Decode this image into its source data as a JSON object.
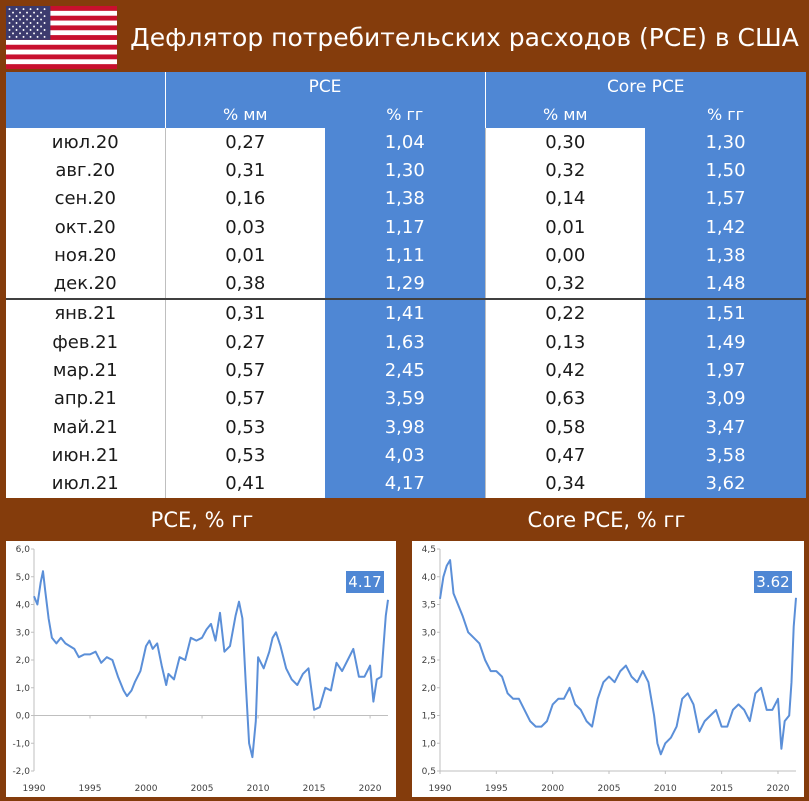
{
  "header": {
    "title": "Дефлятор потребительских расходов (PCE) в США",
    "flag_icon": "us-flag-icon"
  },
  "table": {
    "groups": [
      "PCE",
      "Core PCE"
    ],
    "subheaders": [
      "% мм",
      "% гг",
      "% мм",
      "% гг"
    ],
    "rows": [
      {
        "month": "июл.20",
        "pce_mm": "0,27",
        "pce_gg": "1,04",
        "core_mm": "0,30",
        "core_gg": "1,30"
      },
      {
        "month": "авг.20",
        "pce_mm": "0,31",
        "pce_gg": "1,30",
        "core_mm": "0,32",
        "core_gg": "1,50"
      },
      {
        "month": "сен.20",
        "pce_mm": "0,16",
        "pce_gg": "1,38",
        "core_mm": "0,14",
        "core_gg": "1,57"
      },
      {
        "month": "окт.20",
        "pce_mm": "0,03",
        "pce_gg": "1,17",
        "core_mm": "0,01",
        "core_gg": "1,42"
      },
      {
        "month": "ноя.20",
        "pce_mm": "0,01",
        "pce_gg": "1,11",
        "core_mm": "0,00",
        "core_gg": "1,38"
      },
      {
        "month": "дек.20",
        "pce_mm": "0,38",
        "pce_gg": "1,29",
        "core_mm": "0,32",
        "core_gg": "1,48"
      },
      {
        "month": "янв.21",
        "pce_mm": "0,31",
        "pce_gg": "1,41",
        "core_mm": "0,22",
        "core_gg": "1,51"
      },
      {
        "month": "фев.21",
        "pce_mm": "0,27",
        "pce_gg": "1,63",
        "core_mm": "0,13",
        "core_gg": "1,49"
      },
      {
        "month": "мар.21",
        "pce_mm": "0,57",
        "pce_gg": "2,45",
        "core_mm": "0,42",
        "core_gg": "1,97"
      },
      {
        "month": "апр.21",
        "pce_mm": "0,57",
        "pce_gg": "3,59",
        "core_mm": "0,63",
        "core_gg": "3,09"
      },
      {
        "month": "май.21",
        "pce_mm": "0,53",
        "pce_gg": "3,98",
        "core_mm": "0,58",
        "core_gg": "3,47"
      },
      {
        "month": "июн.21",
        "pce_mm": "0,53",
        "pce_gg": "4,03",
        "core_mm": "0,47",
        "core_gg": "3,58"
      },
      {
        "month": "июл.21",
        "pce_mm": "0,41",
        "pce_gg": "4,17",
        "core_mm": "0,34",
        "core_gg": "3,62"
      }
    ]
  },
  "colors": {
    "background": "#843c0c",
    "accent": "#4f87d4",
    "line": "#5b8fd8"
  },
  "chart_data": [
    {
      "type": "line",
      "title": "PCE, % гг",
      "xlabel": "",
      "ylabel": "",
      "xlim": [
        1990,
        2021.6
      ],
      "ylim": [
        -2.0,
        6.0
      ],
      "yticks": [
        "-2,0",
        "-1,0",
        "0,0",
        "1,0",
        "2,0",
        "3,0",
        "4,0",
        "5,0",
        "6,0"
      ],
      "xticks": [
        "1990",
        "1995",
        "2000",
        "2005",
        "2010",
        "2015",
        "2020"
      ],
      "annotation": "4.17",
      "grid": false,
      "series": [
        {
          "x": [
            1990.0,
            1990.3,
            1990.6,
            1990.8,
            1991.0,
            1991.3,
            1991.6,
            1992.0,
            1992.4,
            1992.8,
            1993.2,
            1993.6,
            1994.0,
            1994.5,
            1995.0,
            1995.5,
            1996.0,
            1996.5,
            1997.0,
            1997.5,
            1998.0,
            1998.3,
            1998.7,
            1999.0,
            1999.5,
            2000.0,
            2000.3,
            2000.6,
            2001.0,
            2001.4,
            2001.8,
            2002.0,
            2002.5,
            2003.0,
            2003.5,
            2004.0,
            2004.5,
            2005.0,
            2005.4,
            2005.8,
            2006.2,
            2006.6,
            2007.0,
            2007.5,
            2008.0,
            2008.3,
            2008.6,
            2008.9,
            2009.2,
            2009.5,
            2009.8,
            2010.0,
            2010.5,
            2011.0,
            2011.3,
            2011.6,
            2012.0,
            2012.5,
            2013.0,
            2013.5,
            2014.0,
            2014.5,
            2015.0,
            2015.5,
            2016.0,
            2016.5,
            2017.0,
            2017.5,
            2018.0,
            2018.5,
            2019.0,
            2019.5,
            2020.0,
            2020.3,
            2020.6,
            2021.0,
            2021.2,
            2021.4,
            2021.6
          ],
          "y": [
            4.3,
            4.0,
            4.8,
            5.2,
            4.5,
            3.5,
            2.8,
            2.6,
            2.8,
            2.6,
            2.5,
            2.4,
            2.1,
            2.2,
            2.2,
            2.3,
            1.9,
            2.1,
            2.0,
            1.4,
            0.9,
            0.7,
            0.9,
            1.2,
            1.6,
            2.5,
            2.7,
            2.4,
            2.6,
            1.8,
            1.1,
            1.5,
            1.3,
            2.1,
            2.0,
            2.8,
            2.7,
            2.8,
            3.1,
            3.3,
            2.7,
            3.7,
            2.3,
            2.5,
            3.6,
            4.1,
            3.5,
            1.2,
            -1.0,
            -1.5,
            -0.2,
            2.1,
            1.7,
            2.3,
            2.8,
            3.0,
            2.5,
            1.7,
            1.3,
            1.1,
            1.5,
            1.7,
            0.2,
            0.3,
            1.0,
            0.9,
            1.9,
            1.6,
            2.0,
            2.4,
            1.4,
            1.4,
            1.8,
            0.5,
            1.3,
            1.4,
            2.5,
            3.6,
            4.17
          ]
        }
      ]
    },
    {
      "type": "line",
      "title": "Core PCE, % гг",
      "xlabel": "",
      "ylabel": "",
      "xlim": [
        1990,
        2021.6
      ],
      "ylim": [
        0.5,
        4.5
      ],
      "yticks": [
        "0,5",
        "1,0",
        "1,5",
        "2,0",
        "2,5",
        "3,0",
        "3,5",
        "4,0",
        "4,5"
      ],
      "xticks": [
        "1990",
        "1995",
        "2000",
        "2005",
        "2010",
        "2015",
        "2020"
      ],
      "annotation": "3.62",
      "grid": false,
      "series": [
        {
          "x": [
            1990.0,
            1990.3,
            1990.6,
            1990.9,
            1991.2,
            1991.6,
            1992.0,
            1992.5,
            1993.0,
            1993.5,
            1994.0,
            1994.5,
            1995.0,
            1995.5,
            1996.0,
            1996.5,
            1997.0,
            1997.5,
            1998.0,
            1998.5,
            1999.0,
            1999.5,
            2000.0,
            2000.5,
            2001.0,
            2001.5,
            2002.0,
            2002.5,
            2003.0,
            2003.5,
            2004.0,
            2004.5,
            2005.0,
            2005.5,
            2006.0,
            2006.5,
            2007.0,
            2007.5,
            2008.0,
            2008.5,
            2009.0,
            2009.3,
            2009.6,
            2010.0,
            2010.5,
            2011.0,
            2011.5,
            2012.0,
            2012.5,
            2013.0,
            2013.5,
            2014.0,
            2014.5,
            2015.0,
            2015.5,
            2016.0,
            2016.5,
            2017.0,
            2017.5,
            2018.0,
            2018.5,
            2019.0,
            2019.5,
            2020.0,
            2020.3,
            2020.6,
            2021.0,
            2021.2,
            2021.4,
            2021.6
          ],
          "y": [
            3.6,
            4.0,
            4.2,
            4.3,
            3.7,
            3.5,
            3.3,
            3.0,
            2.9,
            2.8,
            2.5,
            2.3,
            2.3,
            2.2,
            1.9,
            1.8,
            1.8,
            1.6,
            1.4,
            1.3,
            1.3,
            1.4,
            1.7,
            1.8,
            1.8,
            2.0,
            1.7,
            1.6,
            1.4,
            1.3,
            1.8,
            2.1,
            2.2,
            2.1,
            2.3,
            2.4,
            2.2,
            2.1,
            2.3,
            2.1,
            1.5,
            1.0,
            0.8,
            1.0,
            1.1,
            1.3,
            1.8,
            1.9,
            1.7,
            1.2,
            1.4,
            1.5,
            1.6,
            1.3,
            1.3,
            1.6,
            1.7,
            1.6,
            1.4,
            1.9,
            2.0,
            1.6,
            1.6,
            1.8,
            0.9,
            1.4,
            1.5,
            2.1,
            3.1,
            3.62
          ]
        }
      ]
    }
  ]
}
